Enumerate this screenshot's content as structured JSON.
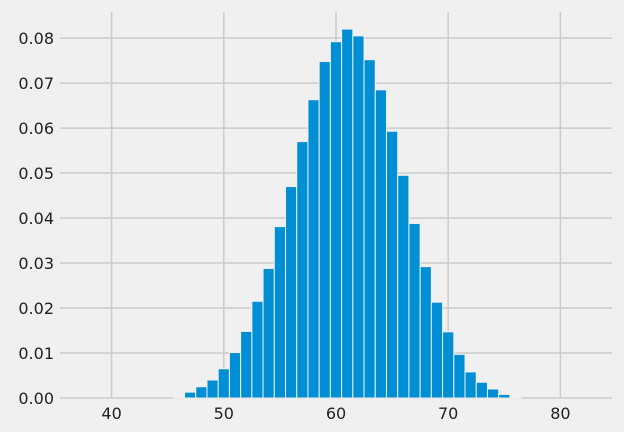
{
  "chart_data": {
    "type": "bar",
    "title": "",
    "xlabel": "",
    "ylabel": "",
    "bin_edges_start": 45.5,
    "bin_width": 1,
    "values": [
      0.0002,
      0.0013,
      0.0025,
      0.004,
      0.0065,
      0.0101,
      0.0148,
      0.0215,
      0.0288,
      0.0381,
      0.047,
      0.057,
      0.0663,
      0.0748,
      0.0792,
      0.082,
      0.0805,
      0.0752,
      0.0685,
      0.0593,
      0.0495,
      0.0388,
      0.0292,
      0.0213,
      0.0147,
      0.0097,
      0.0058,
      0.0035,
      0.002,
      0.0008,
      0.0002
    ],
    "xlim": [
      35.4,
      84.6
    ],
    "ylim": [
      0,
      0.0858
    ],
    "xticks": [
      "40",
      "50",
      "60",
      "70",
      "80"
    ],
    "yticks": [
      "0.00",
      "0.01",
      "0.02",
      "0.03",
      "0.04",
      "0.05",
      "0.06",
      "0.07",
      "0.08"
    ],
    "grid": true,
    "colors": {
      "bar": "#008fd5",
      "background": "#f0f0f0",
      "grid": "#cbcbcb"
    }
  }
}
